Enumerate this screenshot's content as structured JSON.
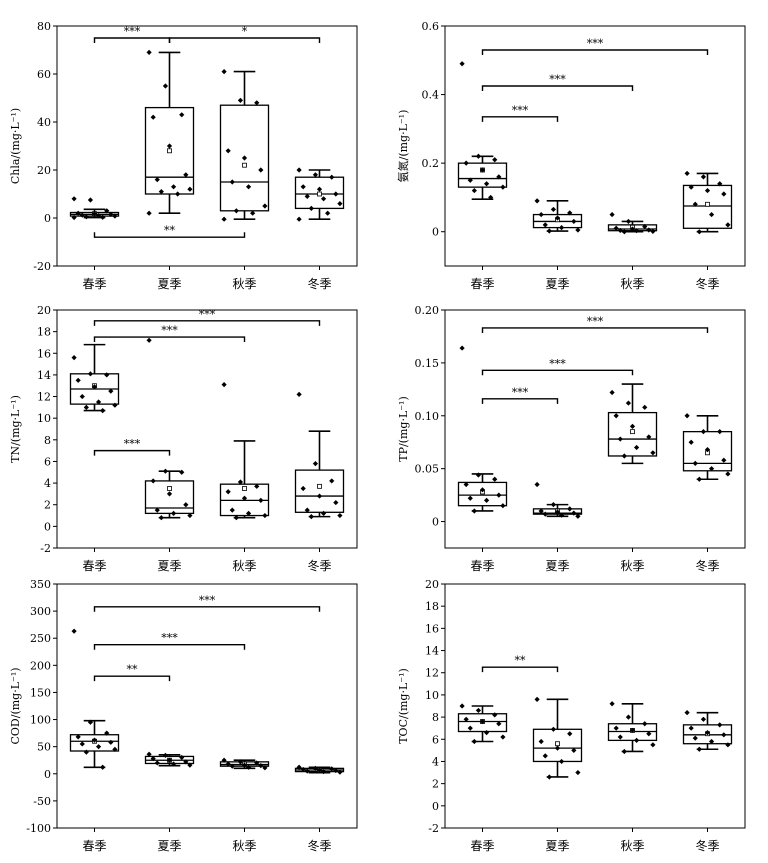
{
  "chart_data": [
    {
      "type": "box",
      "id": "chla",
      "ylabel": "Chla/(mg·L⁻¹)",
      "ylim": [
        -20,
        80
      ],
      "yticks": [
        -20,
        0,
        20,
        40,
        60,
        80
      ],
      "categories": [
        "春季",
        "夏季",
        "秋季",
        "冬季"
      ],
      "boxes": [
        {
          "min": 0.2,
          "q1": 0.8,
          "median": 1.5,
          "q3": 2.3,
          "max": 3.6,
          "mean": 1.8
        },
        {
          "min": 2,
          "q1": 10,
          "median": 17,
          "q3": 46,
          "max": 69,
          "mean": 28
        },
        {
          "min": -0.5,
          "q1": 3,
          "median": 15,
          "q3": 47,
          "max": 61,
          "mean": 22
        },
        {
          "min": -0.5,
          "q1": 4,
          "median": 10,
          "q3": 17,
          "max": 20,
          "mean": 10
        }
      ],
      "points": [
        [
          8,
          7.5,
          3,
          2,
          1.8,
          1.5,
          1.2,
          1,
          0.8,
          0.5,
          0.3,
          0.2
        ],
        [
          69,
          55,
          43,
          42,
          30,
          18,
          16,
          13,
          12,
          11,
          10,
          2
        ],
        [
          61,
          49,
          48,
          28,
          25,
          20,
          15,
          13,
          5,
          3,
          2,
          -0.5
        ],
        [
          20,
          18,
          17,
          13,
          12,
          10,
          9,
          8,
          6,
          4,
          2,
          -0.5
        ]
      ],
      "significance": [
        {
          "from": 0,
          "to": 1,
          "label": "***",
          "y": 75
        },
        {
          "from": 1,
          "to": 3,
          "label": "*",
          "y": 75
        },
        {
          "from": 0,
          "to": 2,
          "label": "**",
          "y": -8,
          "below": true
        }
      ]
    },
    {
      "type": "box",
      "id": "ammonia",
      "ylabel": "氨氮/(mg·L⁻¹)",
      "ylim": [
        -0.1,
        0.6
      ],
      "yticks": [
        0,
        0.2,
        0.4,
        0.6
      ],
      "categories": [
        "春季",
        "夏季",
        "秋季",
        "冬季"
      ],
      "boxes": [
        {
          "min": 0.095,
          "q1": 0.13,
          "median": 0.155,
          "q3": 0.2,
          "max": 0.22,
          "mean": 0.18
        },
        {
          "min": 0.002,
          "q1": 0.012,
          "median": 0.03,
          "q3": 0.05,
          "max": 0.09,
          "mean": 0.035
        },
        {
          "min": 0.0,
          "q1": 0.003,
          "median": 0.008,
          "q3": 0.02,
          "max": 0.03,
          "mean": 0.013
        },
        {
          "min": 0.0,
          "q1": 0.01,
          "median": 0.075,
          "q3": 0.135,
          "max": 0.17,
          "mean": 0.08
        }
      ],
      "points": [
        [
          0.49,
          0.22,
          0.21,
          0.2,
          0.18,
          0.16,
          0.15,
          0.14,
          0.13,
          0.12,
          0.1
        ],
        [
          0.09,
          0.065,
          0.055,
          0.05,
          0.04,
          0.03,
          0.02,
          0.012,
          0.005,
          0.002
        ],
        [
          0.05,
          0.03,
          0.015,
          0.01,
          0.008,
          0.005,
          0.004,
          0.003,
          0.001,
          0.0
        ],
        [
          0.17,
          0.16,
          0.14,
          0.13,
          0.12,
          0.11,
          0.08,
          0.05,
          0.02,
          0.0
        ]
      ],
      "significance": [
        {
          "from": 0,
          "to": 1,
          "label": "***",
          "y": 0.335
        },
        {
          "from": 0,
          "to": 2,
          "label": "***",
          "y": 0.425
        },
        {
          "from": 0,
          "to": 3,
          "label": "***",
          "y": 0.53
        }
      ]
    },
    {
      "type": "box",
      "id": "tn",
      "ylabel": "TN/(mg·L⁻¹)",
      "ylim": [
        -2,
        20
      ],
      "yticks": [
        -2,
        0,
        2,
        4,
        6,
        8,
        10,
        12,
        14,
        16,
        18,
        20
      ],
      "categories": [
        "春季",
        "夏季",
        "秋季",
        "冬季"
      ],
      "boxes": [
        {
          "min": 10.7,
          "q1": 11.3,
          "median": 12.7,
          "q3": 14.1,
          "max": 16.8,
          "mean": 13.0
        },
        {
          "min": 0.8,
          "q1": 1.2,
          "median": 1.7,
          "q3": 4.2,
          "max": 5.1,
          "mean": 3.5
        },
        {
          "min": 0.8,
          "q1": 1.0,
          "median": 2.4,
          "q3": 3.9,
          "max": 7.9,
          "mean": 3.5
        },
        {
          "min": 0.9,
          "q1": 1.3,
          "median": 2.8,
          "q3": 5.2,
          "max": 8.8,
          "mean": 3.7
        }
      ],
      "points": [
        [
          15.6,
          14.1,
          14,
          13.5,
          12.9,
          12.5,
          12,
          11.5,
          11.2,
          11,
          10.7
        ],
        [
          17.2,
          5.1,
          5,
          4.2,
          3,
          2,
          1.5,
          1.2,
          1,
          0.8
        ],
        [
          13.1,
          4.1,
          3.7,
          3.2,
          2.6,
          2.4,
          1.5,
          1.2,
          1,
          0.8
        ],
        [
          12.2,
          5.8,
          4.2,
          3.5,
          2.8,
          2.2,
          1.5,
          1.2,
          1,
          0.9
        ]
      ],
      "significance": [
        {
          "from": 0,
          "to": 3,
          "label": "***",
          "y": 19
        },
        {
          "from": 0,
          "to": 2,
          "label": "***",
          "y": 17.5
        },
        {
          "from": 0,
          "to": 1,
          "label": "***",
          "y": 7
        }
      ]
    },
    {
      "type": "box",
      "id": "tp",
      "ylabel": "TP/(mg·L⁻¹)",
      "ylim": [
        -0.025,
        0.2
      ],
      "yticks": [
        0,
        0.05,
        0.1,
        0.15,
        0.2
      ],
      "ytick_labels": [
        "0",
        "0.05",
        "0.10",
        "0.15",
        "0.20"
      ],
      "categories": [
        "春季",
        "夏季",
        "秋季",
        "冬季"
      ],
      "boxes": [
        {
          "min": 0.01,
          "q1": 0.015,
          "median": 0.025,
          "q3": 0.037,
          "max": 0.045,
          "mean": 0.028
        },
        {
          "min": 0.005,
          "q1": 0.007,
          "median": 0.008,
          "q3": 0.012,
          "max": 0.016,
          "mean": 0.01
        },
        {
          "min": 0.055,
          "q1": 0.062,
          "median": 0.078,
          "q3": 0.103,
          "max": 0.13,
          "mean": 0.085
        },
        {
          "min": 0.04,
          "q1": 0.048,
          "median": 0.055,
          "q3": 0.085,
          "max": 0.1,
          "mean": 0.065
        }
      ],
      "points": [
        [
          0.164,
          0.044,
          0.04,
          0.035,
          0.03,
          0.025,
          0.022,
          0.02,
          0.015,
          0.01
        ],
        [
          0.035,
          0.016,
          0.012,
          0.01,
          0.009,
          0.008,
          0.007,
          0.006,
          0.005
        ],
        [
          0.122,
          0.112,
          0.108,
          0.1,
          0.09,
          0.08,
          0.078,
          0.07,
          0.065,
          0.062
        ],
        [
          0.1,
          0.085,
          0.085,
          0.075,
          0.068,
          0.058,
          0.055,
          0.05,
          0.045,
          0.04
        ]
      ],
      "significance": [
        {
          "from": 0,
          "to": 1,
          "label": "***",
          "y": 0.116
        },
        {
          "from": 0,
          "to": 2,
          "label": "***",
          "y": 0.143
        },
        {
          "from": 0,
          "to": 3,
          "label": "***",
          "y": 0.183
        }
      ]
    },
    {
      "type": "box",
      "id": "cod",
      "ylabel": "COD/(mg·L⁻¹)",
      "ylim": [
        -100,
        350
      ],
      "yticks": [
        -100,
        -50,
        0,
        50,
        100,
        150,
        200,
        250,
        300,
        350
      ],
      "categories": [
        "春季",
        "夏季",
        "秋季",
        "冬季"
      ],
      "boxes": [
        {
          "min": 12,
          "q1": 42,
          "median": 60,
          "q3": 72,
          "max": 98,
          "mean": 60
        },
        {
          "min": 15,
          "q1": 19,
          "median": 25,
          "q3": 32,
          "max": 35,
          "mean": 25
        },
        {
          "min": 10,
          "q1": 14,
          "median": 17,
          "q3": 22,
          "max": 25,
          "mean": 18
        },
        {
          "min": 2,
          "q1": 4,
          "median": 7,
          "q3": 10,
          "max": 12,
          "mean": 7
        }
      ],
      "points": [
        [
          263,
          95,
          75,
          68,
          62,
          58,
          55,
          50,
          45,
          40,
          12
        ],
        [
          36,
          34,
          30,
          28,
          25,
          22,
          20,
          18,
          16
        ],
        [
          25,
          22,
          20,
          18,
          16,
          15,
          14,
          12,
          11
        ],
        [
          12,
          10,
          9,
          8,
          7,
          6,
          5,
          4,
          3
        ]
      ],
      "significance": [
        {
          "from": 0,
          "to": 1,
          "label": "**",
          "y": 180
        },
        {
          "from": 0,
          "to": 2,
          "label": "***",
          "y": 238
        },
        {
          "from": 0,
          "to": 3,
          "label": "***",
          "y": 308
        }
      ]
    },
    {
      "type": "box",
      "id": "toc",
      "ylabel": "TOC/(mg·L⁻¹)",
      "ylim": [
        -2,
        20
      ],
      "yticks": [
        -2,
        0,
        2,
        4,
        6,
        8,
        10,
        12,
        14,
        16,
        18,
        20
      ],
      "categories": [
        "春季",
        "夏季",
        "秋季",
        "冬季"
      ],
      "boxes": [
        {
          "min": 5.8,
          "q1": 6.7,
          "median": 7.6,
          "q3": 8.3,
          "max": 9.0,
          "mean": 7.6
        },
        {
          "min": 2.6,
          "q1": 4.0,
          "median": 5.2,
          "q3": 6.9,
          "max": 9.6,
          "mean": 5.6
        },
        {
          "min": 4.9,
          "q1": 5.9,
          "median": 6.7,
          "q3": 7.4,
          "max": 9.2,
          "mean": 6.8
        },
        {
          "min": 5.1,
          "q1": 5.6,
          "median": 6.4,
          "q3": 7.3,
          "max": 8.4,
          "mean": 6.5
        }
      ],
      "points": [
        [
          9,
          8.6,
          8.2,
          7.8,
          7.6,
          7.4,
          7,
          6.6,
          6.2,
          5.8
        ],
        [
          9.6,
          6.9,
          6.5,
          5.8,
          5.2,
          5,
          4.5,
          4,
          3,
          2.6
        ],
        [
          9.2,
          8,
          7.4,
          7,
          6.8,
          6.5,
          6.2,
          5.9,
          5.5,
          4.9
        ],
        [
          8.4,
          7.8,
          7.3,
          7,
          6.6,
          6.4,
          6.1,
          5.8,
          5.5,
          5.1
        ]
      ],
      "significance": [
        {
          "from": 0,
          "to": 1,
          "label": "**",
          "y": 12.5
        }
      ]
    }
  ]
}
